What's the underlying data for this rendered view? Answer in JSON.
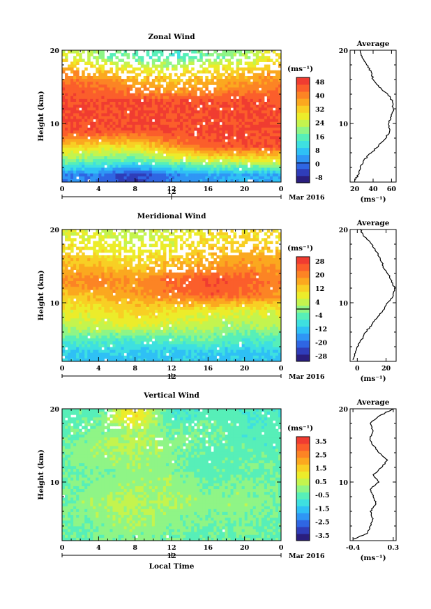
{
  "chart_data": [
    {
      "type": "heatmap",
      "title": "Zonal Wind",
      "ylabel": "Height (km)",
      "xlabel": "",
      "x_ticks": [
        "0",
        "4",
        "8",
        "12",
        "16",
        "20",
        "0"
      ],
      "y_ticks": [
        "10",
        "20"
      ],
      "xlim": [
        0,
        24
      ],
      "ylim": [
        2,
        20
      ],
      "date_tick": "12",
      "date_label": "Mar 2016",
      "colorbar": {
        "unit": "(ms⁻¹)",
        "ticks": [
          "48",
          "40",
          "32",
          "24",
          "16",
          "8",
          "0",
          "-8"
        ]
      },
      "field": {
        "hours": [
          0,
          4,
          8,
          12,
          16,
          20,
          24
        ],
        "heights_km": [
          3,
          5,
          7,
          9,
          11,
          13,
          15,
          17,
          19
        ],
        "values_ms": [
          [
            2,
            1,
            -6,
            2,
            4,
            6,
            6
          ],
          [
            20,
            18,
            16,
            22,
            26,
            28,
            30
          ],
          [
            34,
            32,
            30,
            40,
            46,
            48,
            48
          ],
          [
            48,
            48,
            48,
            48,
            48,
            48,
            48
          ],
          [
            48,
            48,
            48,
            48,
            48,
            48,
            48
          ],
          [
            48,
            48,
            48,
            48,
            48,
            48,
            46
          ],
          [
            46,
            44,
            40,
            36,
            38,
            40,
            42
          ],
          [
            40,
            36,
            32,
            30,
            32,
            34,
            38
          ],
          [
            28,
            20,
            16,
            14,
            18,
            22,
            30
          ]
        ]
      },
      "profile": {
        "title": "Average",
        "xlabel": "(ms⁻¹)",
        "x_ticks": [
          "20",
          "40",
          "60"
        ],
        "y_ticks": [
          "10",
          "20"
        ],
        "xlim": [
          15,
          65
        ],
        "heights_km": [
          2.2,
          3,
          4,
          5,
          6,
          7,
          8,
          9,
          10,
          11,
          12,
          13,
          14,
          15,
          16,
          17,
          18,
          19,
          20
        ],
        "values_ms": [
          20,
          24,
          26,
          30,
          38,
          46,
          54,
          58,
          57,
          60,
          62,
          61,
          56,
          46,
          40,
          38,
          33,
          28,
          26
        ]
      }
    },
    {
      "type": "heatmap",
      "title": "Meridional Wind",
      "ylabel": "Height (km)",
      "xlabel": "",
      "x_ticks": [
        "0",
        "4",
        "8",
        "12",
        "16",
        "20",
        "0"
      ],
      "y_ticks": [
        "10",
        "20"
      ],
      "xlim": [
        0,
        24
      ],
      "ylim": [
        2,
        20
      ],
      "date_tick": "12",
      "date_label": "Mar 2016",
      "colorbar": {
        "unit": "(ms⁻¹)",
        "ticks": [
          "28",
          "20",
          "12",
          "4",
          "-4",
          "-12",
          "-20",
          "-28"
        ]
      },
      "field": {
        "hours": [
          0,
          4,
          8,
          12,
          16,
          20,
          24
        ],
        "heights_km": [
          3,
          5,
          7,
          9,
          11,
          13,
          15,
          17,
          19
        ],
        "values_ms": [
          [
            -12,
            -12,
            -12,
            -12,
            -12,
            -12,
            -12
          ],
          [
            -4,
            -4,
            -6,
            -4,
            -2,
            -6,
            -4
          ],
          [
            4,
            6,
            8,
            6,
            4,
            2,
            4
          ],
          [
            8,
            10,
            12,
            10,
            8,
            8,
            8
          ],
          [
            14,
            16,
            18,
            22,
            26,
            24,
            20
          ],
          [
            20,
            22,
            20,
            24,
            28,
            26,
            22
          ],
          [
            16,
            14,
            12,
            16,
            18,
            20,
            18
          ],
          [
            12,
            10,
            8,
            10,
            14,
            16,
            14
          ],
          [
            8,
            6,
            4,
            6,
            10,
            12,
            10
          ]
        ]
      },
      "profile": {
        "title": "Average",
        "xlabel": "(ms⁻¹)",
        "x_ticks": [
          "0",
          "20"
        ],
        "y_ticks": [
          "10",
          "20"
        ],
        "xlim": [
          -5,
          27
        ],
        "heights_km": [
          2.2,
          3,
          4,
          5,
          6,
          7,
          8,
          9,
          10,
          11,
          12,
          13,
          14,
          15,
          16,
          17,
          18,
          19,
          20
        ],
        "values_ms": [
          -3,
          -2,
          0,
          3,
          6,
          10,
          14,
          18,
          21,
          25,
          26,
          24,
          21,
          18,
          16,
          13,
          10,
          5,
          2
        ]
      }
    },
    {
      "type": "heatmap",
      "title": "Vertical Wind",
      "ylabel": "Height (km)",
      "xlabel": "Local Time",
      "x_ticks": [
        "0",
        "4",
        "8",
        "12",
        "16",
        "20",
        "0"
      ],
      "y_ticks": [
        "10",
        "20"
      ],
      "xlim": [
        0,
        24
      ],
      "ylim": [
        2,
        20
      ],
      "date_tick": "12",
      "date_label": "Mar 2016",
      "colorbar": {
        "unit": "(ms⁻¹)",
        "ticks": [
          "3.5",
          "2.5",
          "1.5",
          "0.5",
          "-0.5",
          "-1.5",
          "-2.5",
          "-3.5"
        ]
      },
      "field": {
        "hours": [
          0,
          4,
          8,
          12,
          16,
          20,
          24
        ],
        "heights_km": [
          3,
          5,
          7,
          9,
          11,
          13,
          15,
          17,
          19
        ],
        "values_ms": [
          [
            -0.5,
            -0.3,
            0,
            -0.2,
            -0.4,
            -0.3,
            -0.5
          ],
          [
            -0.3,
            0,
            0.3,
            0,
            -0.2,
            -0.1,
            -0.3
          ],
          [
            -0.2,
            0.2,
            0.5,
            0.3,
            0,
            0.1,
            -0.2
          ],
          [
            -0.3,
            0,
            0.3,
            0.2,
            -0.2,
            0,
            -0.3
          ],
          [
            -0.4,
            -0.2,
            0,
            0,
            -0.5,
            -0.3,
            -0.4
          ],
          [
            -0.2,
            0.1,
            0.2,
            -0.1,
            -0.6,
            -0.4,
            -0.3
          ],
          [
            -0.3,
            0.2,
            0.5,
            0,
            -0.4,
            -0.5,
            -0.6
          ],
          [
            -0.5,
            -0.2,
            0.3,
            -0.3,
            -0.2,
            -0.6,
            -0.5
          ],
          [
            -0.6,
            -0.4,
            1.5,
            -0.8,
            -0.5,
            -0.7,
            -0.6
          ]
        ]
      },
      "profile": {
        "title": "Average",
        "xlabel": "(ms⁻¹)",
        "x_ticks": [
          "-0.4",
          "0.3"
        ],
        "y_ticks": [
          "10",
          "20"
        ],
        "xlim": [
          -0.45,
          0.35
        ],
        "heights_km": [
          2.2,
          3,
          4,
          5,
          6,
          7,
          8,
          9,
          10,
          11,
          12,
          13,
          14,
          15,
          16,
          17,
          18,
          19,
          20
        ],
        "values_ms": [
          -0.4,
          -0.15,
          -0.1,
          -0.05,
          -0.1,
          0,
          -0.05,
          -0.1,
          0.05,
          -0.05,
          0.1,
          0.2,
          0.05,
          -0.05,
          -0.1,
          -0.05,
          -0.1,
          0.05,
          0.3
        ]
      }
    }
  ]
}
